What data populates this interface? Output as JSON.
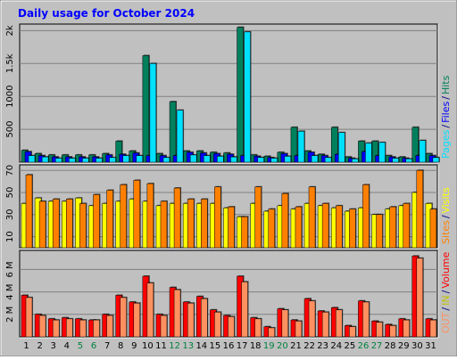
{
  "title": "Daily usage for October 2024",
  "legend_separator": "/",
  "chart_data": [
    {
      "type": "bar",
      "ylim": [
        0,
        2100
      ],
      "yticks": [
        500,
        1000,
        {
          "value": 1500,
          "label": "1.5k"
        },
        {
          "value": 2000,
          "label": "2k"
        }
      ],
      "grid": true,
      "series": [
        {
          "name": "Hits",
          "color": "#00805c",
          "values": [
            180,
            130,
            110,
            110,
            110,
            110,
            130,
            320,
            170,
            1620,
            130,
            920,
            170,
            170,
            150,
            140,
            2050,
            110,
            90,
            150,
            530,
            170,
            120,
            530,
            80,
            320,
            320,
            100,
            80,
            530,
            130
          ]
        },
        {
          "name": "Files",
          "color": "#0000ff",
          "values": [
            160,
            100,
            80,
            80,
            80,
            80,
            110,
            120,
            140,
            100,
            100,
            100,
            150,
            140,
            130,
            120,
            100,
            90,
            70,
            130,
            100,
            150,
            100,
            120,
            60,
            160,
            100,
            80,
            60,
            100,
            100
          ]
        },
        {
          "name": "Pages",
          "color": "#00e0ff",
          "values": [
            100,
            80,
            60,
            60,
            60,
            60,
            70,
            100,
            100,
            1500,
            70,
            790,
            110,
            100,
            90,
            80,
            1980,
            70,
            60,
            90,
            470,
            100,
            70,
            450,
            50,
            290,
            300,
            60,
            50,
            330,
            70
          ]
        }
      ]
    },
    {
      "type": "bar",
      "ylim": [
        0,
        75
      ],
      "yticks": [
        10,
        30,
        50,
        70
      ],
      "grid": true,
      "series": [
        {
          "name": "Visits",
          "color": "#ffff00",
          "values": [
            40,
            45,
            42,
            42,
            45,
            38,
            40,
            42,
            44,
            42,
            38,
            40,
            40,
            40,
            40,
            36,
            28,
            40,
            33,
            38,
            35,
            40,
            38,
            36,
            33,
            36,
            30,
            35,
            38,
            50,
            40
          ]
        },
        {
          "name": "Sites",
          "color": "#ff8000",
          "values": [
            66,
            42,
            44,
            44,
            40,
            48,
            52,
            57,
            61,
            58,
            42,
            54,
            44,
            44,
            55,
            37,
            28,
            55,
            35,
            49,
            37,
            55,
            40,
            38,
            35,
            57,
            30,
            37,
            40,
            70,
            35
          ]
        }
      ]
    },
    {
      "type": "bar",
      "ylim": [
        0,
        7.7
      ],
      "yticks": [
        {
          "value": 2,
          "label": "2 M"
        },
        {
          "value": 4,
          "label": "4 M"
        },
        {
          "value": 6,
          "label": "6 M"
        }
      ],
      "grid": true,
      "legend_extra": {
        "name": "IN",
        "color": "#c0c000"
      },
      "series": [
        {
          "name": "Volume",
          "color": "#ff0000",
          "values": [
            3.7,
            2.0,
            1.6,
            1.7,
            1.6,
            1.5,
            2.0,
            3.7,
            3.1,
            5.4,
            2.0,
            4.4,
            3.1,
            3.6,
            2.4,
            1.9,
            5.4,
            1.7,
            0.9,
            2.5,
            1.5,
            3.4,
            2.3,
            2.6,
            1.0,
            3.2,
            1.4,
            1.1,
            1.6,
            7.2,
            1.6
          ]
        },
        {
          "name": "OUT",
          "color": "#ff9060",
          "values": [
            3.5,
            1.9,
            1.5,
            1.6,
            1.5,
            1.5,
            1.9,
            3.5,
            3.0,
            4.8,
            1.9,
            4.2,
            3.0,
            3.4,
            2.2,
            1.8,
            4.9,
            1.6,
            0.8,
            2.4,
            1.4,
            3.2,
            2.2,
            2.4,
            0.9,
            3.1,
            1.3,
            1.0,
            1.5,
            7.0,
            1.5
          ]
        }
      ],
      "categories": [
        "1",
        "2",
        "3",
        "4",
        "5",
        "6",
        "7",
        "8",
        "9",
        "10",
        "11",
        "12",
        "13",
        "14",
        "15",
        "16",
        "17",
        "18",
        "19",
        "20",
        "21",
        "22",
        "23",
        "24",
        "25",
        "26",
        "27",
        "28",
        "29",
        "30",
        "31"
      ],
      "weekend_indices": [
        4,
        5,
        11,
        12,
        18,
        19,
        25,
        26
      ],
      "weekend_color": "#008040"
    }
  ]
}
